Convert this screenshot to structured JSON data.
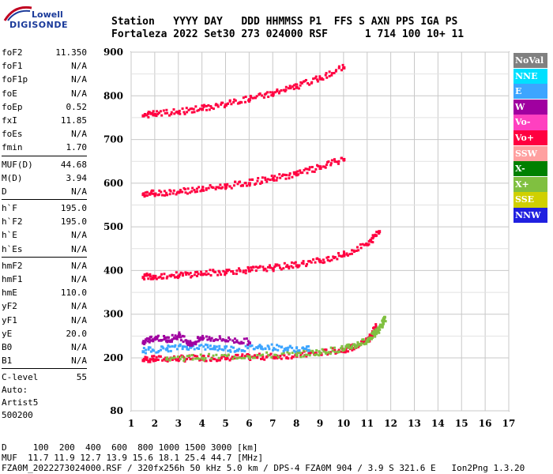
{
  "logo": {
    "line1": "Lowell",
    "line2": "DIGISONDE"
  },
  "header": {
    "labels": "Station   YYYY DAY   DDD HHMMSS P1  FFS S AXN PPS IGA PS",
    "values": "Fortaleza 2022 Set30 273 024000 RSF      1 714 100 10+ 11"
  },
  "params": [
    {
      "k": "foF2",
      "v": "11.350"
    },
    {
      "k": "foF1",
      "v": "N/A"
    },
    {
      "k": "foF1p",
      "v": "N/A"
    },
    {
      "k": "foE",
      "v": "N/A"
    },
    {
      "k": "foEp",
      "v": "0.52"
    },
    {
      "k": "fxI",
      "v": "11.85"
    },
    {
      "k": "foEs",
      "v": "N/A"
    },
    {
      "k": "fmin",
      "v": "1.70"
    },
    {
      "k": "MUF(D)",
      "v": "44.68"
    },
    {
      "k": "M(D)",
      "v": "3.94"
    },
    {
      "k": "D",
      "v": "N/A"
    },
    {
      "k": "h`F",
      "v": "195.0"
    },
    {
      "k": "h`F2",
      "v": "195.0"
    },
    {
      "k": "h`E",
      "v": "N/A"
    },
    {
      "k": "h`Es",
      "v": "N/A"
    },
    {
      "k": "hmF2",
      "v": "N/A"
    },
    {
      "k": "hmF1",
      "v": "N/A"
    },
    {
      "k": "hmE",
      "v": "110.0"
    },
    {
      "k": "yF2",
      "v": "N/A"
    },
    {
      "k": "yF1",
      "v": "N/A"
    },
    {
      "k": "yE",
      "v": "20.0"
    },
    {
      "k": "B0",
      "v": "N/A"
    },
    {
      "k": "B1",
      "v": "N/A"
    },
    {
      "k": "C-level",
      "v": "55"
    }
  ],
  "extra": {
    "auto": "Auto:",
    "artist": "Artist5",
    "code": "500200"
  },
  "legend": [
    {
      "label": "NoVal",
      "color": "#808080"
    },
    {
      "label": "NNE",
      "color": "#00e0ff"
    },
    {
      "label": "E",
      "color": "#3da5ff"
    },
    {
      "label": "W",
      "color": "#a000a0"
    },
    {
      "label": "Vo-",
      "color": "#ff40c0"
    },
    {
      "label": "Vo+",
      "color": "#ff0040"
    },
    {
      "label": "SSW",
      "color": "#ffa0a0"
    },
    {
      "label": "X-",
      "color": "#008000"
    },
    {
      "label": "X+",
      "color": "#80c040"
    },
    {
      "label": "SSE",
      "color": "#d0d000"
    },
    {
      "label": "NNW",
      "color": "#2020e0"
    }
  ],
  "footer": {
    "line1": "D     100  200  400  600  800 1000 1500 3000 [km]",
    "line2": "MUF  11.7 11.9 12.7 13.9 15.6 18.1 25.4 44.7 [MHz]",
    "line3": "FZA0M_2022273024000.RSF / 320fx256h 50 kHz 5.0 km / DPS-4 FZA0M 904 / 3.9 S 321.6 E   Ion2Png 1.3.20"
  },
  "chart_data": {
    "type": "scatter",
    "xlim": [
      1,
      17
    ],
    "ylim": [
      80,
      900
    ],
    "xticks": [
      1,
      2,
      3,
      4,
      5,
      6,
      7,
      8,
      9,
      10,
      11,
      12,
      13,
      14,
      15,
      16,
      17
    ],
    "yticks": [
      80,
      200,
      300,
      400,
      500,
      600,
      700,
      800,
      900
    ],
    "grid": true,
    "series": [
      {
        "name": "Vo+",
        "color": "#ff0040",
        "x": [
          1.5,
          2,
          3,
          4,
          5,
          6,
          7,
          8,
          9,
          10,
          10.5,
          11,
          11.2,
          11.35
        ],
        "y": [
          195,
          196,
          197,
          198,
          199,
          200,
          202,
          205,
          210,
          218,
          225,
          240,
          255,
          270
        ]
      },
      {
        "name": "X+",
        "color": "#80c040",
        "x": [
          2.5,
          4,
          6,
          8,
          9,
          10,
          10.5,
          11,
          11.3,
          11.6,
          11.7
        ],
        "y": [
          198,
          200,
          203,
          207,
          212,
          220,
          228,
          240,
          255,
          275,
          290
        ]
      },
      {
        "name": "E",
        "color": "#3da5ff",
        "x": [
          1.5,
          2.5,
          3.5,
          4.5,
          5.5,
          6.5,
          7.5,
          8.5
        ],
        "y": [
          215,
          220,
          225,
          222,
          218,
          225,
          220,
          218
        ]
      },
      {
        "name": "W",
        "color": "#a000a0",
        "x": [
          1.5,
          2,
          2.5,
          3,
          3.5,
          4,
          5,
          6
        ],
        "y": [
          235,
          245,
          240,
          250,
          230,
          245,
          240,
          235
        ]
      },
      {
        "name": "Vo+",
        "color": "#ff0040",
        "x": [
          1.5,
          2,
          3,
          4,
          5,
          6,
          7,
          8,
          9,
          10,
          11,
          11.5
        ],
        "y": [
          385,
          386,
          388,
          392,
          396,
          400,
          405,
          412,
          422,
          435,
          460,
          490
        ]
      },
      {
        "name": "Vo+",
        "color": "#ff0040",
        "x": [
          1.5,
          2,
          3,
          4,
          5,
          6,
          7,
          8,
          9,
          10
        ],
        "y": [
          575,
          576,
          580,
          585,
          592,
          600,
          610,
          620,
          635,
          655
        ]
      },
      {
        "name": "Vo+",
        "color": "#ff0040",
        "x": [
          1.5,
          2,
          3,
          4,
          5,
          6,
          7,
          8,
          9,
          10
        ],
        "y": [
          755,
          757,
          762,
          770,
          780,
          792,
          805,
          820,
          840,
          865
        ]
      }
    ]
  }
}
